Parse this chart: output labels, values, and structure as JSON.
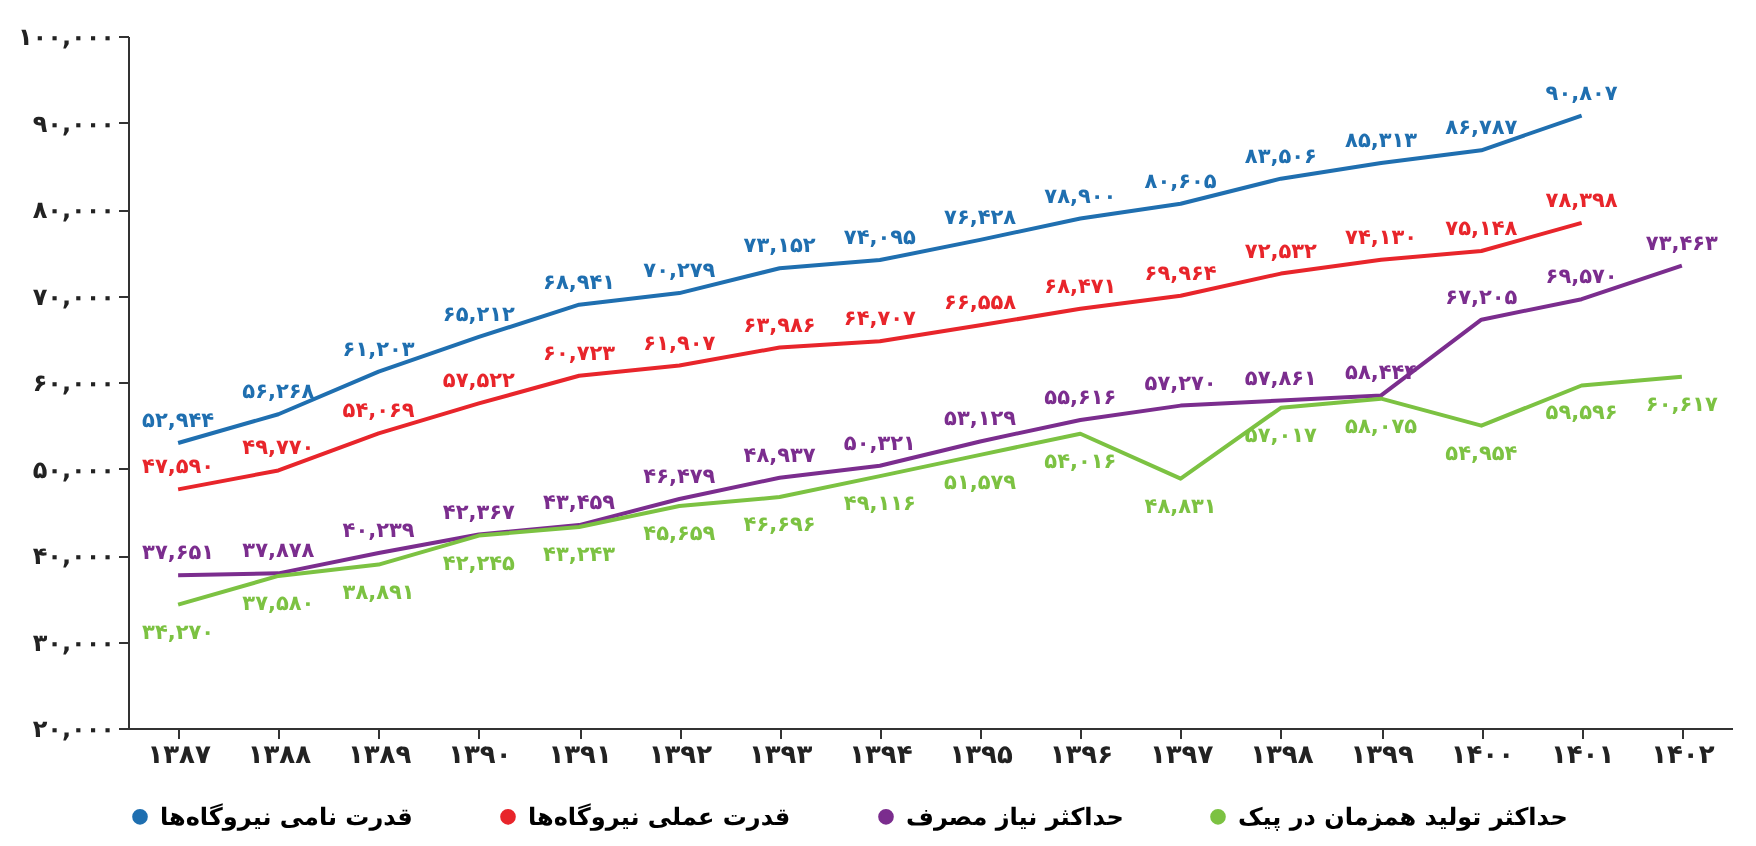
{
  "chart_data": {
    "type": "line",
    "categories": [
      "۱۳۸۷",
      "۱۳۸۸",
      "۱۳۸۹",
      "۱۳۹۰",
      "۱۳۹۱",
      "۱۳۹۲",
      "۱۳۹۳",
      "۱۳۹۴",
      "۱۳۹۵",
      "۱۳۹۶",
      "۱۳۹۷",
      "۱۳۹۸",
      "۱۳۹۹",
      "۱۴۰۰",
      "۱۴۰۱",
      "۱۴۰۲"
    ],
    "series": [
      {
        "name": "قدرت نامی نیروگاه‌ها",
        "color": "#1f6fb0",
        "values": [
          52944,
          56268,
          61203,
          65212,
          68941,
          70279,
          73152,
          74095,
          76428,
          78900,
          80605,
          83506,
          85313,
          86787,
          90807,
          null
        ],
        "value_labels": [
          "۵۲,۹۴۴",
          "۵۶,۲۶۸",
          "۶۱,۲۰۳",
          "۶۵,۲۱۲",
          "۶۸,۹۴۱",
          "۷۰,۲۷۹",
          "۷۳,۱۵۲",
          "۷۴,۰۹۵",
          "۷۶,۴۲۸",
          "۷۸,۹۰۰",
          "۸۰,۶۰۵",
          "۸۳,۵۰۶",
          "۸۵,۳۱۳",
          "۸۶,۷۸۷",
          "۹۰,۸۰۷",
          null
        ]
      },
      {
        "name": "قدرت عملی نیروگاه‌ها",
        "color": "#e8252b",
        "values": [
          47590,
          49770,
          54069,
          57522,
          60723,
          61907,
          63986,
          64707,
          66558,
          68471,
          69964,
          72532,
          74130,
          75148,
          78398,
          null
        ],
        "value_labels": [
          "۴۷,۵۹۰",
          "۴۹,۷۷۰",
          "۵۴,۰۶۹",
          "۵۷,۵۲۲",
          "۶۰,۷۲۳",
          "۶۱,۹۰۷",
          "۶۳,۹۸۶",
          "۶۴,۷۰۷",
          "۶۶,۵۵۸",
          "۶۸,۴۷۱",
          "۶۹,۹۶۴",
          "۷۲,۵۳۲",
          "۷۴,۱۳۰",
          "۷۵,۱۴۸",
          "۷۸,۳۹۸",
          null
        ]
      },
      {
        "name": "حداکثر نیاز مصرف",
        "color": "#7b2d8e",
        "values": [
          37651,
          37878,
          40239,
          42367,
          43459,
          46479,
          48937,
          50321,
          53129,
          55616,
          57270,
          57861,
          58444,
          67205,
          69570,
          73463
        ],
        "value_labels": [
          "۳۷,۶۵۱",
          "۳۷,۸۷۸",
          "۴۰,۲۳۹",
          "۴۲,۳۶۷",
          "۴۳,۴۵۹",
          "۴۶,۴۷۹",
          "۴۸,۹۳۷",
          "۵۰,۳۲۱",
          "۵۳,۱۲۹",
          "۵۵,۶۱۶",
          "۵۷,۲۷۰",
          "۵۷,۸۶۱",
          "۵۸,۴۴۴",
          "۶۷,۲۰۵",
          "۶۹,۵۷۰",
          "۷۳,۴۶۳"
        ]
      },
      {
        "name": "حداکثر تولید همزمان در پیک",
        "color": "#7cc242",
        "values": [
          34270,
          37580,
          38891,
          42245,
          43243,
          45659,
          46696,
          49116,
          51579,
          54016,
          48831,
          57017,
          58075,
          54954,
          59596,
          60617
        ],
        "value_labels": [
          "۳۴,۲۷۰",
          "۳۷,۵۸۰",
          "۳۸,۸۹۱",
          "۴۲,۲۴۵",
          "۴۳,۲۴۳",
          "۴۵,۶۵۹",
          "۴۶,۶۹۶",
          "۴۹,۱۱۶",
          "۵۱,۵۷۹",
          "۵۴,۰۱۶",
          "۴۸,۸۳۱",
          "۵۷,۰۱۷",
          "۵۸,۰۷۵",
          "۵۴,۹۵۴",
          "۵۹,۵۹۶",
          "۶۰,۶۱۷"
        ]
      }
    ],
    "ylim": [
      20000,
      100000
    ],
    "yticks": [
      {
        "value": 20000,
        "label": "۲۰,۰۰۰"
      },
      {
        "value": 30000,
        "label": "۳۰,۰۰۰"
      },
      {
        "value": 40000,
        "label": "۴۰,۰۰۰"
      },
      {
        "value": 50000,
        "label": "۵۰,۰۰۰"
      },
      {
        "value": 60000,
        "label": "۶۰,۰۰۰"
      },
      {
        "value": 70000,
        "label": "۷۰,۰۰۰"
      },
      {
        "value": 80000,
        "label": "۸۰,۰۰۰"
      },
      {
        "value": 90000,
        "label": "۹۰,۰۰۰"
      },
      {
        "value": 100000,
        "label": "۱۰۰,۰۰۰"
      }
    ],
    "grid": false,
    "legend": "bottom",
    "marker": "none",
    "line_style": "solid"
  }
}
